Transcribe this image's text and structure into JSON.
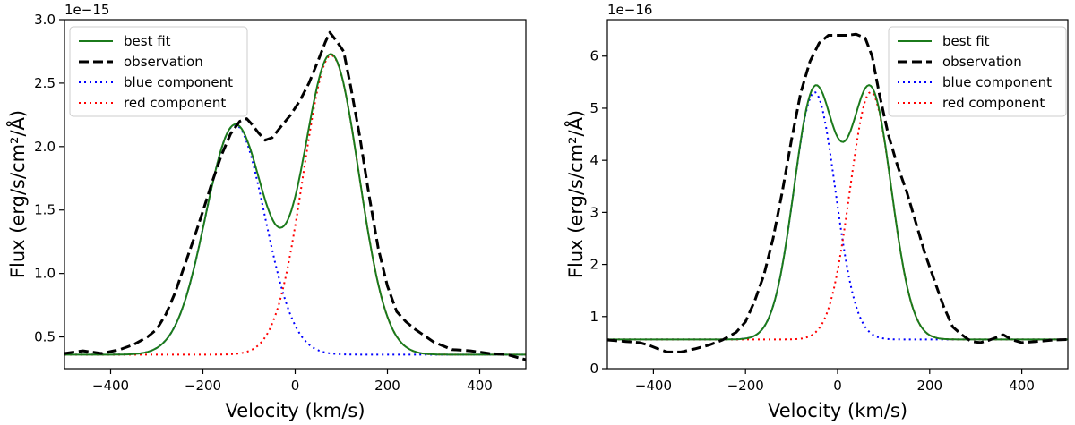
{
  "chart_data": [
    {
      "type": "line",
      "xlabel": "Velocity (km/s)",
      "ylabel": "Flux (erg/s/cm²/Å)",
      "offset_label": "1e−15",
      "xlim": [
        -500,
        500
      ],
      "ylim": [
        0.25,
        3.0
      ],
      "xticks": [
        -400,
        -200,
        0,
        200,
        400
      ],
      "yticks": [
        0.5,
        1.0,
        1.5,
        2.0,
        2.5,
        3.0
      ],
      "xtick_labels": [
        "−400",
        "−200",
        "0",
        "200",
        "400"
      ],
      "ytick_labels": [
        "0.5",
        "1.0",
        "1.5",
        "2.0",
        "2.5",
        "3.0"
      ],
      "legend_position": "top-left",
      "grid": false,
      "continuum": 0.36,
      "components": [
        {
          "name": "blue component",
          "center": -130,
          "amplitude": 1.81,
          "sigma": 64
        },
        {
          "name": "red component",
          "center": 78,
          "amplitude": 2.36,
          "sigma": 60
        }
      ],
      "series": [
        {
          "name": "best fit",
          "style": "solid",
          "color": "#1b7a1b"
        },
        {
          "name": "observation",
          "style": "dashed",
          "color": "#000000",
          "points": [
            [
              -500,
              0.37
            ],
            [
              -460,
              0.39
            ],
            [
              -420,
              0.37
            ],
            [
              -380,
              0.4
            ],
            [
              -350,
              0.44
            ],
            [
              -320,
              0.5
            ],
            [
              -300,
              0.56
            ],
            [
              -280,
              0.68
            ],
            [
              -260,
              0.85
            ],
            [
              -240,
              1.06
            ],
            [
              -220,
              1.27
            ],
            [
              -200,
              1.49
            ],
            [
              -180,
              1.72
            ],
            [
              -160,
              1.93
            ],
            [
              -140,
              2.1
            ],
            [
              -120,
              2.2
            ],
            [
              -105,
              2.22
            ],
            [
              -95,
              2.18
            ],
            [
              -80,
              2.11
            ],
            [
              -65,
              2.05
            ],
            [
              -50,
              2.07
            ],
            [
              -30,
              2.16
            ],
            [
              -10,
              2.25
            ],
            [
              10,
              2.36
            ],
            [
              30,
              2.5
            ],
            [
              50,
              2.68
            ],
            [
              65,
              2.82
            ],
            [
              75,
              2.9
            ],
            [
              90,
              2.83
            ],
            [
              105,
              2.75
            ],
            [
              120,
              2.48
            ],
            [
              140,
              2.08
            ],
            [
              160,
              1.62
            ],
            [
              180,
              1.2
            ],
            [
              200,
              0.9
            ],
            [
              220,
              0.7
            ],
            [
              240,
              0.62
            ],
            [
              260,
              0.56
            ],
            [
              280,
              0.51
            ],
            [
              300,
              0.46
            ],
            [
              340,
              0.4
            ],
            [
              380,
              0.39
            ],
            [
              420,
              0.37
            ],
            [
              460,
              0.36
            ],
            [
              500,
              0.32
            ]
          ]
        },
        {
          "name": "blue component",
          "style": "dotted",
          "color": "#0000ff"
        },
        {
          "name": "red component",
          "style": "dotted",
          "color": "#ff0000"
        }
      ]
    },
    {
      "type": "line",
      "xlabel": "Velocity (km/s)",
      "ylabel": "Flux (erg/s/cm²/Å)",
      "offset_label": "1e−16",
      "xlim": [
        -500,
        500
      ],
      "ylim": [
        0,
        6.7
      ],
      "xticks": [
        -400,
        -200,
        0,
        200,
        400
      ],
      "yticks": [
        0,
        1,
        2,
        3,
        4,
        5,
        6
      ],
      "xtick_labels": [
        "−400",
        "−200",
        "0",
        "200",
        "400"
      ],
      "ytick_labels": [
        "0",
        "1",
        "2",
        "3",
        "4",
        "5",
        "6"
      ],
      "legend_position": "top-right",
      "grid": false,
      "continuum": 0.56,
      "components": [
        {
          "name": "blue component",
          "center": -50,
          "amplitude": 4.75,
          "sigma": 45
        },
        {
          "name": "red component",
          "center": 72,
          "amplitude": 4.75,
          "sigma": 45
        }
      ],
      "series": [
        {
          "name": "best fit",
          "style": "solid",
          "color": "#1b7a1b"
        },
        {
          "name": "observation",
          "style": "dashed",
          "color": "#000000",
          "points": [
            [
              -500,
              0.55
            ],
            [
              -460,
              0.52
            ],
            [
              -430,
              0.5
            ],
            [
              -410,
              0.45
            ],
            [
              -390,
              0.38
            ],
            [
              -370,
              0.32
            ],
            [
              -340,
              0.32
            ],
            [
              -310,
              0.38
            ],
            [
              -280,
              0.45
            ],
            [
              -250,
              0.55
            ],
            [
              -220,
              0.7
            ],
            [
              -200,
              0.9
            ],
            [
              -180,
              1.3
            ],
            [
              -160,
              1.8
            ],
            [
              -140,
              2.5
            ],
            [
              -120,
              3.4
            ],
            [
              -100,
              4.4
            ],
            [
              -80,
              5.3
            ],
            [
              -60,
              5.9
            ],
            [
              -40,
              6.25
            ],
            [
              -20,
              6.4
            ],
            [
              0,
              6.4
            ],
            [
              20,
              6.4
            ],
            [
              40,
              6.42
            ],
            [
              60,
              6.35
            ],
            [
              75,
              6.0
            ],
            [
              90,
              5.3
            ],
            [
              110,
              4.5
            ],
            [
              130,
              3.9
            ],
            [
              150,
              3.4
            ],
            [
              170,
              2.8
            ],
            [
              190,
              2.2
            ],
            [
              210,
              1.7
            ],
            [
              230,
              1.2
            ],
            [
              250,
              0.8
            ],
            [
              270,
              0.65
            ],
            [
              290,
              0.52
            ],
            [
              310,
              0.5
            ],
            [
              330,
              0.55
            ],
            [
              345,
              0.6
            ],
            [
              360,
              0.65
            ],
            [
              380,
              0.55
            ],
            [
              400,
              0.5
            ],
            [
              430,
              0.52
            ],
            [
              470,
              0.55
            ],
            [
              500,
              0.56
            ]
          ]
        },
        {
          "name": "blue component",
          "style": "dotted",
          "color": "#0000ff"
        },
        {
          "name": "red component",
          "style": "dotted",
          "color": "#ff0000"
        }
      ]
    }
  ]
}
